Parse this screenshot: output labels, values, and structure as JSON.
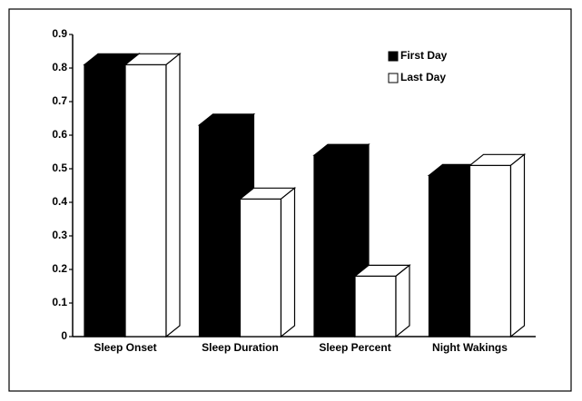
{
  "chart_data": {
    "type": "bar3d",
    "categories": [
      "Sleep Onset",
      "Sleep Duration",
      "Sleep Percent",
      "Night Wakings"
    ],
    "series": [
      {
        "name": "First Day",
        "color": "#000000",
        "values": [
          0.81,
          0.63,
          0.54,
          0.48
        ]
      },
      {
        "name": "Last Day",
        "color": "#ffffff",
        "values": [
          0.81,
          0.41,
          0.18,
          0.51
        ]
      }
    ],
    "ylim": [
      0,
      0.9
    ],
    "yticks": [
      0,
      0.1,
      0.2,
      0.3,
      0.4,
      0.5,
      0.6,
      0.7,
      0.8,
      0.9
    ],
    "legend": "upper right"
  }
}
